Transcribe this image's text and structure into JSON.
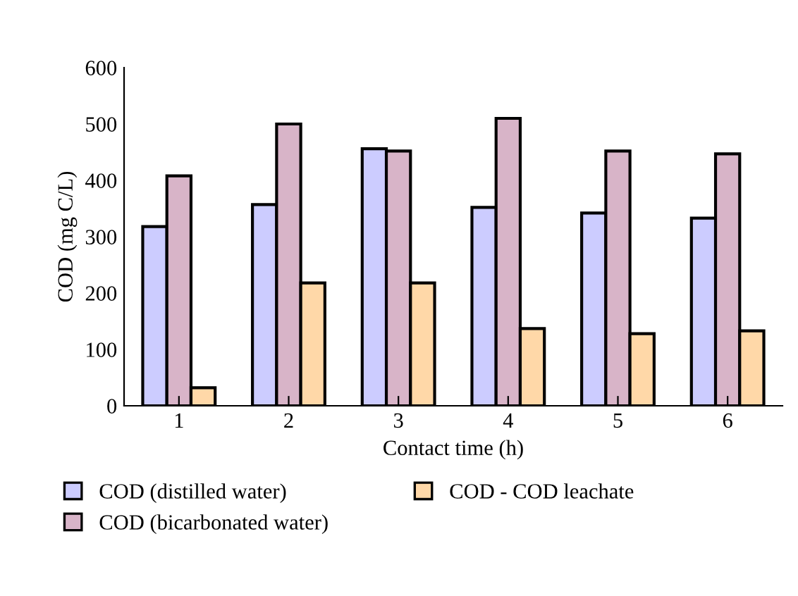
{
  "chart_data": {
    "type": "bar",
    "xlabel": "Contact time (h)",
    "ylabel": "COD (mg C/L)",
    "categories": [
      "1",
      "2",
      "3",
      "4",
      "5",
      "6"
    ],
    "series": [
      {
        "name": "COD (distilled water)",
        "color": "#ccccff",
        "values": [
          318,
          357,
          456,
          352,
          342,
          333
        ]
      },
      {
        "name": "COD (bicarbonated water)",
        "color": "#d8b4c8",
        "values": [
          408,
          500,
          452,
          510,
          452,
          447
        ]
      },
      {
        "name": "COD - COD leachate",
        "color": "#ffd8a8",
        "values": [
          32,
          218,
          218,
          137,
          128,
          133
        ]
      }
    ],
    "ylim": [
      0,
      600
    ],
    "yticks": [
      0,
      100,
      200,
      300,
      400,
      500,
      600
    ],
    "grid": false,
    "legend": "bottom"
  }
}
